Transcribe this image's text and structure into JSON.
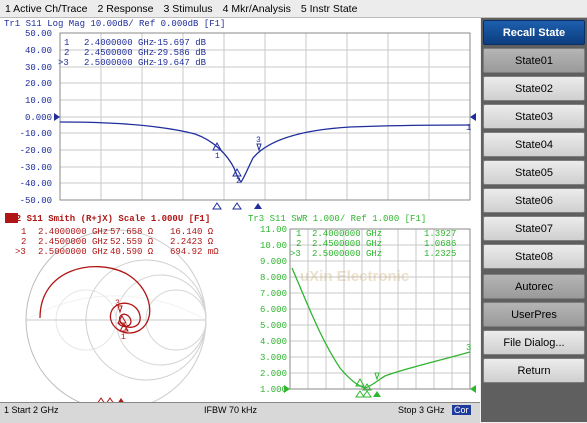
{
  "menubar": {
    "items": [
      "1 Active Ch/Trace",
      "2 Response",
      "3 Stimulus",
      "4 Mkr/Analysis",
      "5 Instr State"
    ]
  },
  "top_trace": {
    "header": "Tr1 S11 Log Mag 10.00dB/ Ref 0.000dB [F1]",
    "y_ticks": [
      "50.00",
      "40.00",
      "30.00",
      "20.00",
      "10.00",
      "0.000",
      "-10.00",
      "-20.00",
      "-30.00",
      "-40.00",
      "-50.00"
    ],
    "markers": [
      {
        "id": "1",
        "freq": "2.4000000 GHz",
        "value": "-15.697 dB"
      },
      {
        "id": "2",
        "freq": "2.4500000 GHz",
        "value": "-29.586 dB"
      },
      {
        "id": ">3",
        "freq": "2.5000000 GHz",
        "value": "-19.647 dB"
      }
    ],
    "right_label": "1"
  },
  "smith_trace": {
    "header": "Tr2 S11 Smith (R+jX) Scale 1.000U [F1]",
    "markers": [
      {
        "id": "1",
        "freq": "2.4000000 GHz",
        "r": "57.658 Ω",
        "x": "16.140 Ω"
      },
      {
        "id": "2",
        "freq": "2.4500000 GHz",
        "r": "52.559 Ω",
        "x": "2.2423 Ω"
      },
      {
        "id": ">3",
        "freq": "2.5000000 GHz",
        "r": "40.590 Ω",
        "x": "694.92 mΩ"
      }
    ]
  },
  "swr_trace": {
    "header": "Tr3 S11 SWR 1.000/ Ref 1.000 [F1]",
    "y_ticks": [
      "11.00",
      "10.00",
      "9.000",
      "8.000",
      "7.000",
      "6.000",
      "5.000",
      "4.000",
      "3.000",
      "2.000",
      "1.000"
    ],
    "markers": [
      {
        "id": "1",
        "freq": "2.4000000 GHz",
        "value": "1.3927"
      },
      {
        "id": "2",
        "freq": "2.4500000 GHz",
        "value": "1.0686"
      },
      {
        "id": ">3",
        "freq": "2.5000000 GHz",
        "value": "1.2325"
      }
    ],
    "right_label": "3"
  },
  "softkeys": {
    "title": "Recall State",
    "items": [
      "State01",
      "State02",
      "State03",
      "State04",
      "State05",
      "State06",
      "State07",
      "State08",
      "Autorec",
      "UserPres",
      "File Dialog...",
      "Return"
    ]
  },
  "statusbar": {
    "start": "1 Start 2 GHz",
    "ifbw": "IFBW 70 kHz",
    "stop": "Stop 3 GHz",
    "extra": "Cor"
  },
  "watermark": "uXin Electronic",
  "colors": {
    "trace1": "#1f2e9c",
    "trace2": "#b01616",
    "trace3": "#2fb52f",
    "title_key": "#0c3d80"
  }
}
